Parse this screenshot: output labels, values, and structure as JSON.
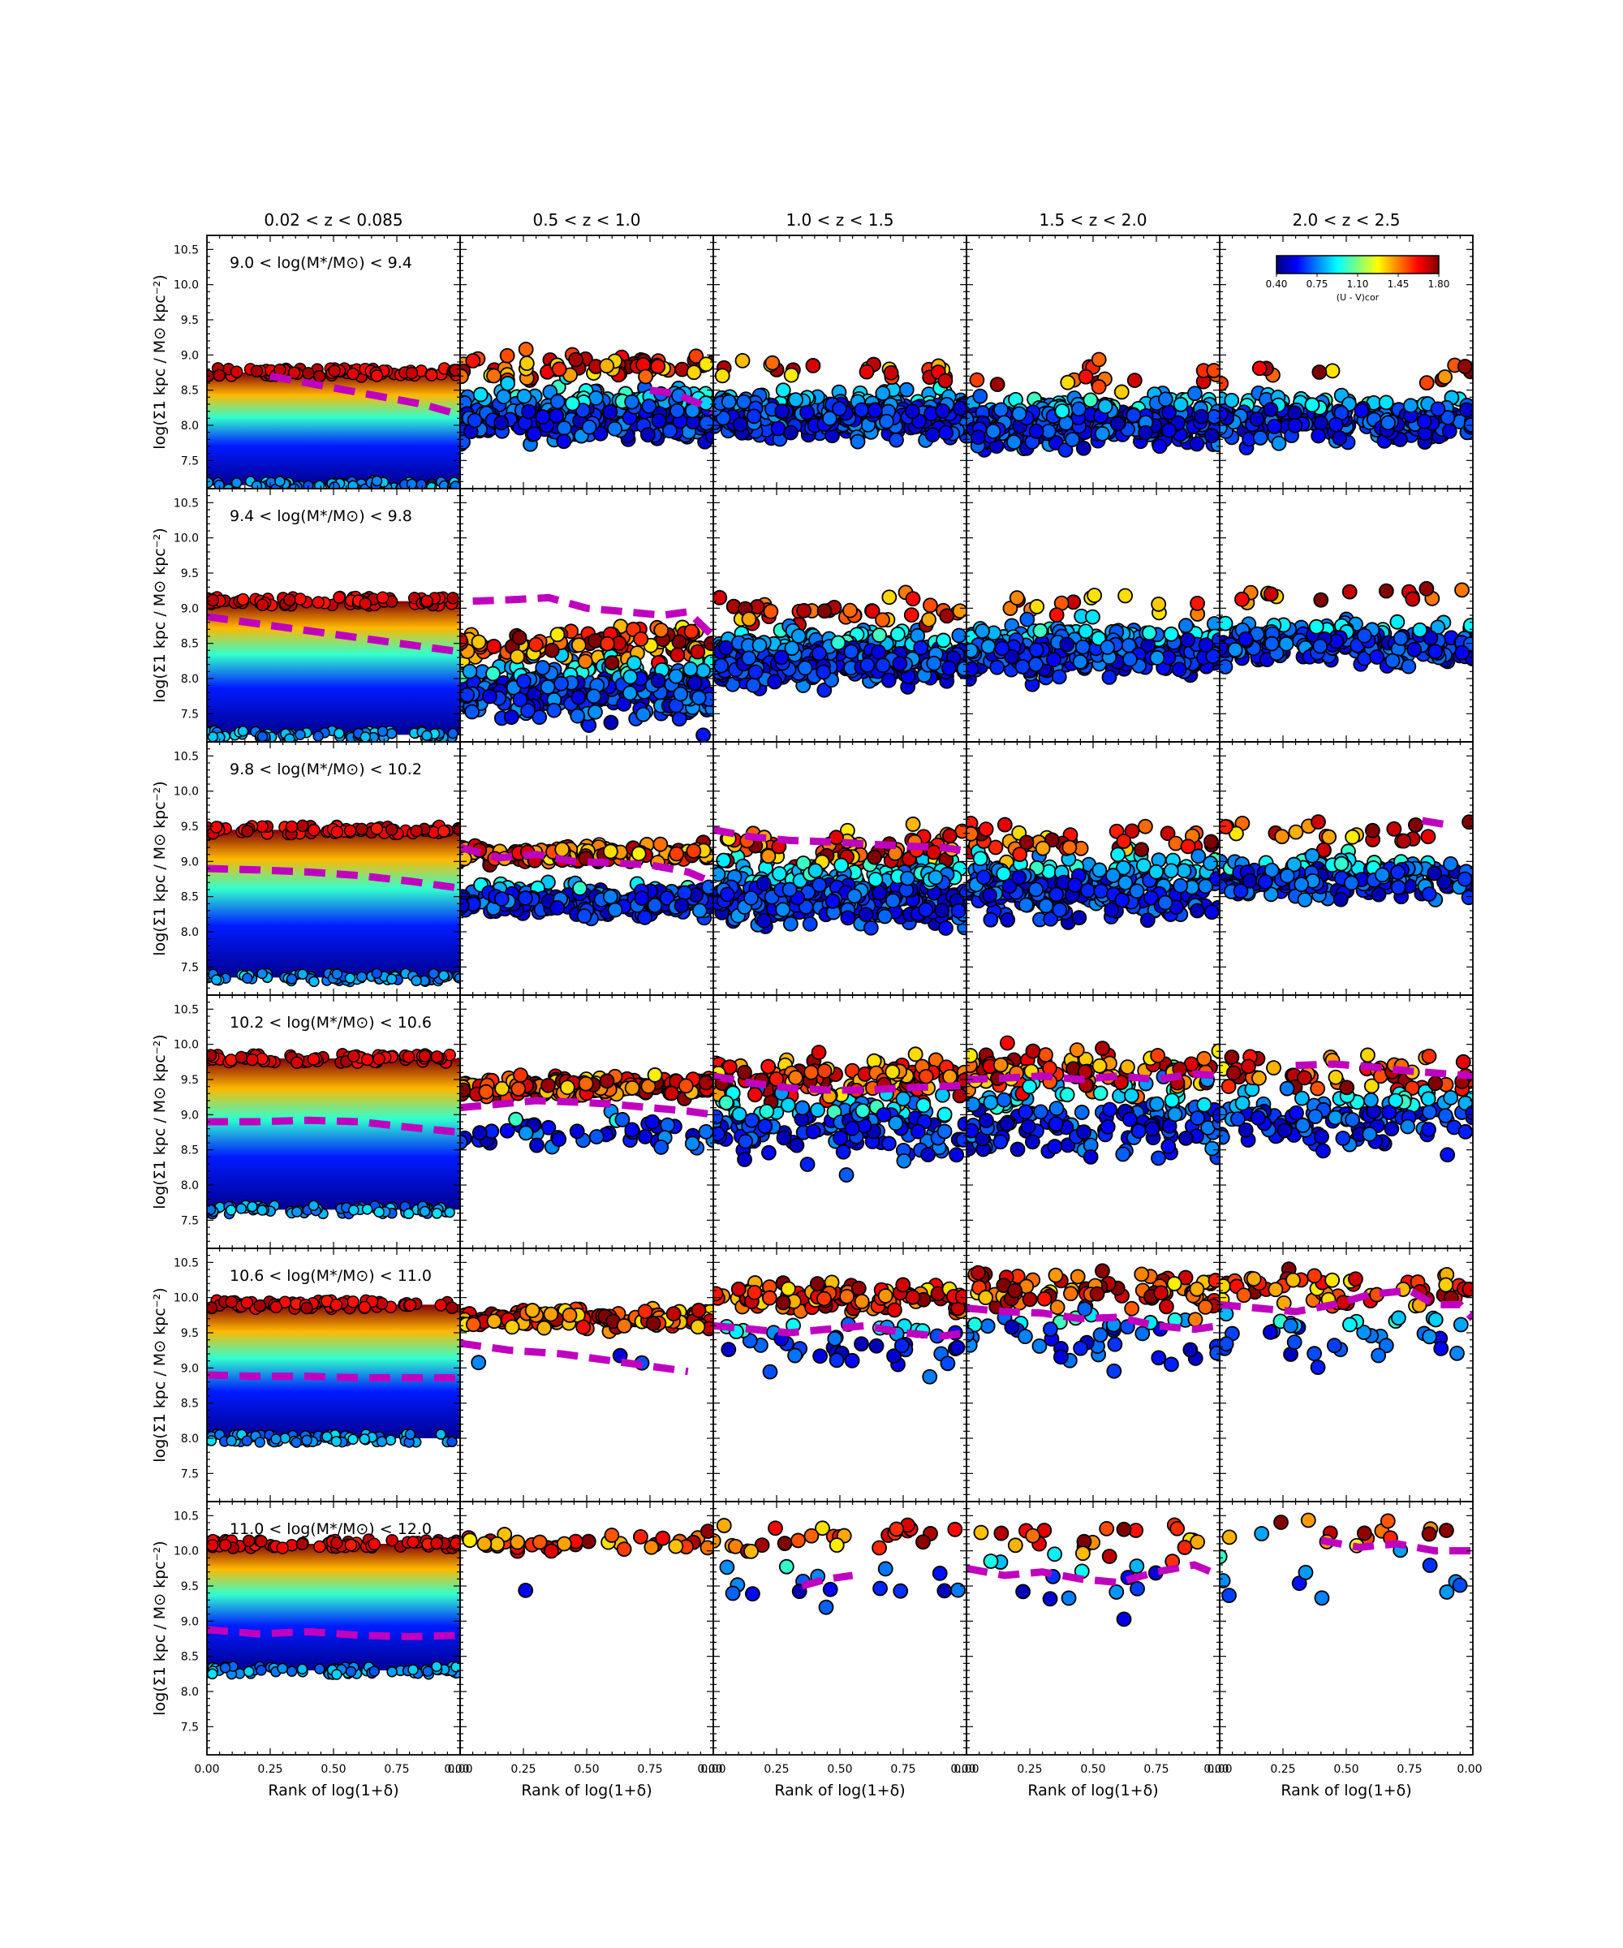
{
  "chart_data": {
    "type": "scatter",
    "description_layout": "grid of small-multiple scatter panels",
    "column_titles": [
      "0.02 < z < 0.085",
      "0.5 < z < 1.0",
      "1.0 < z < 1.5",
      "1.5 < z < 2.0",
      "2.0 < z < 2.5"
    ],
    "row_titles": [
      "9.0 < log(M*/M⊙) < 9.4",
      "9.4 < log(M*/M⊙) < 9.8",
      "9.8 < log(M*/M⊙) < 10.2",
      "10.2 < log(M*/M⊙) < 10.6",
      "10.6 < log(M*/M⊙) < 11.0",
      "11.0 < log(M*/M⊙) < 12.0"
    ],
    "xlabel": "Rank of log(1+δ)",
    "ylabel": "log(Σ1 kpc / M⊙ kpc⁻²)",
    "xlim": [
      0,
      1
    ],
    "ylim": [
      7.1,
      10.7
    ],
    "x_ticks": [
      "0.00",
      "0.25",
      "0.50",
      "0.75",
      "0.00"
    ],
    "y_ticks": [
      "7.5",
      "8.0",
      "8.5",
      "9.0",
      "9.5",
      "10.0",
      "10.5"
    ],
    "colorbar": {
      "label": "(U - V)cor",
      "ticks": [
        "0.40",
        "0.75",
        "1.10",
        "1.45",
        "1.80"
      ],
      "range": [
        0.4,
        1.8
      ],
      "colormap": "jet",
      "placement": "top-right of last column, first row"
    },
    "median_line_color": "#bf00bf",
    "median_lines": [
      [
        {
          "x": [
            0.25,
            0.4,
            0.55,
            0.7,
            0.85,
            1.0
          ],
          "y": [
            8.7,
            8.6,
            8.5,
            8.4,
            8.3,
            8.15
          ]
        },
        {
          "x": [
            0.75,
            0.85,
            0.95,
            1.0
          ],
          "y": [
            8.5,
            8.45,
            8.3,
            8.2
          ]
        },
        null,
        null,
        null
      ],
      [
        {
          "x": [
            0.0,
            0.2,
            0.4,
            0.6,
            0.8,
            1.0
          ],
          "y": [
            8.88,
            8.78,
            8.68,
            8.58,
            8.48,
            8.38
          ]
        },
        {
          "x": [
            0.05,
            0.2,
            0.35,
            0.5,
            0.65,
            0.8,
            0.9,
            1.0
          ],
          "y": [
            9.1,
            9.12,
            9.15,
            9.0,
            8.95,
            8.9,
            8.95,
            8.6
          ]
        },
        null,
        null,
        null
      ],
      [
        {
          "x": [
            0.0,
            0.2,
            0.4,
            0.6,
            0.8,
            1.0
          ],
          "y": [
            8.9,
            8.88,
            8.85,
            8.8,
            8.72,
            8.62
          ]
        },
        {
          "x": [
            0.0,
            0.15,
            0.3,
            0.45,
            0.6,
            0.75,
            0.9,
            1.0
          ],
          "y": [
            9.2,
            9.05,
            9.1,
            9.0,
            8.98,
            8.95,
            8.85,
            8.7
          ]
        },
        {
          "x": [
            0.0,
            0.15,
            0.3,
            0.45,
            0.6,
            0.75,
            0.9,
            1.0
          ],
          "y": [
            9.45,
            9.35,
            9.3,
            9.28,
            9.25,
            9.22,
            9.2,
            9.15
          ]
        },
        null,
        {
          "x": [
            0.8,
            0.9
          ],
          "y": [
            9.58,
            9.52
          ]
        }
      ],
      [
        {
          "x": [
            0.0,
            0.2,
            0.4,
            0.6,
            0.8,
            1.0
          ],
          "y": [
            8.9,
            8.9,
            8.92,
            8.9,
            8.82,
            8.75
          ]
        },
        {
          "x": [
            0.0,
            0.15,
            0.3,
            0.45,
            0.6,
            0.75,
            0.9,
            1.0
          ],
          "y": [
            9.1,
            9.15,
            9.2,
            9.18,
            9.15,
            9.1,
            9.05,
            9.0
          ]
        },
        {
          "x": [
            0.0,
            0.15,
            0.3,
            0.45,
            0.6,
            0.75,
            0.9,
            1.0
          ],
          "y": [
            9.55,
            9.45,
            9.38,
            9.35,
            9.35,
            9.38,
            9.4,
            9.42
          ]
        },
        {
          "x": [
            0.0,
            0.15,
            0.3,
            0.45,
            0.6,
            0.75,
            0.9,
            1.0
          ],
          "y": [
            9.5,
            9.52,
            9.55,
            9.5,
            9.55,
            9.5,
            9.58,
            9.55
          ]
        },
        {
          "x": [
            0.3,
            0.45,
            0.6,
            0.75,
            0.9,
            1.0
          ],
          "y": [
            9.7,
            9.72,
            9.68,
            9.62,
            9.58,
            9.55
          ]
        }
      ],
      [
        {
          "x": [
            0.0,
            0.2,
            0.4,
            0.6,
            0.8,
            1.0
          ],
          "y": [
            8.9,
            8.88,
            8.88,
            8.86,
            8.86,
            8.86
          ]
        },
        {
          "x": [
            0.0,
            0.2,
            0.4,
            0.6,
            0.8,
            0.9
          ],
          "y": [
            9.35,
            9.25,
            9.2,
            9.1,
            9.0,
            8.95
          ]
        },
        {
          "x": [
            0.0,
            0.15,
            0.3,
            0.45,
            0.6,
            0.75,
            0.9,
            1.0
          ],
          "y": [
            9.6,
            9.55,
            9.5,
            9.55,
            9.6,
            9.5,
            9.45,
            9.5
          ]
        },
        {
          "x": [
            0.0,
            0.15,
            0.3,
            0.45,
            0.6,
            0.75,
            0.9,
            1.0
          ],
          "y": [
            9.85,
            9.8,
            9.78,
            9.7,
            9.72,
            9.6,
            9.55,
            9.6
          ]
        },
        {
          "x": [
            0.0,
            0.15,
            0.3,
            0.45,
            0.6,
            0.75,
            0.85,
            0.95,
            1.0
          ],
          "y": [
            9.9,
            9.85,
            9.8,
            9.9,
            10.05,
            10.1,
            9.9,
            9.9,
            9.7
          ]
        }
      ],
      [
        {
          "x": [
            0.0,
            0.2,
            0.4,
            0.6,
            0.8,
            1.0
          ],
          "y": [
            8.88,
            8.82,
            8.85,
            8.8,
            8.78,
            8.8
          ]
        },
        null,
        {
          "x": [
            0.35,
            0.45,
            0.55
          ],
          "y": [
            9.5,
            9.6,
            9.65
          ]
        },
        {
          "x": [
            0.0,
            0.15,
            0.3,
            0.45,
            0.6,
            0.75,
            0.9,
            1.0
          ],
          "y": [
            9.75,
            9.65,
            9.7,
            9.6,
            9.55,
            9.7,
            9.8,
            9.65
          ]
        },
        {
          "x": [
            0.4,
            0.55,
            0.7,
            0.85,
            1.0
          ],
          "y": [
            10.15,
            10.05,
            10.1,
            10.0,
            10.0
          ]
        }
      ]
    ]
  }
}
